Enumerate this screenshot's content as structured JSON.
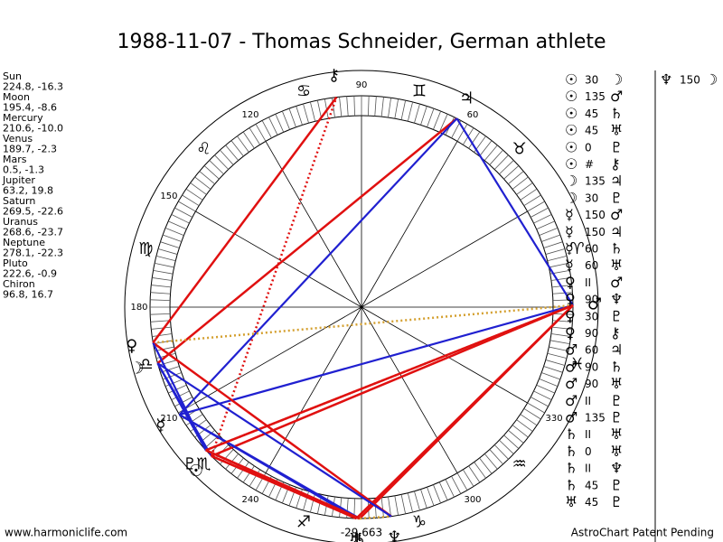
{
  "title": "1988-11-07 - Thomas Schneider, German athlete",
  "planets": [
    {
      "name": "Sun",
      "glyph": "☉",
      "position": "224.8, -16.3"
    },
    {
      "name": "Moon",
      "glyph": "☽",
      "position": "195.4, -8.6"
    },
    {
      "name": "Mercury",
      "glyph": "☿",
      "position": "210.6, -10.0"
    },
    {
      "name": "Venus",
      "glyph": "♀",
      "position": "189.7, -2.3"
    },
    {
      "name": "Mars",
      "glyph": "♂",
      "position": "0.5, -1.3"
    },
    {
      "name": "Jupiter",
      "glyph": "♃",
      "position": "63.2, 19.8"
    },
    {
      "name": "Saturn",
      "glyph": "♄",
      "position": "269.5, -22.6"
    },
    {
      "name": "Uranus",
      "glyph": "♅",
      "position": "268.6, -23.7"
    },
    {
      "name": "Neptune",
      "glyph": "♆",
      "position": "278.1, -22.3"
    },
    {
      "name": "Pluto",
      "glyph": "♇",
      "position": "222.6, -0.9"
    },
    {
      "name": "Chiron",
      "glyph": "⚷",
      "position": "96.8, 16.7"
    }
  ],
  "wheel": {
    "signs": [
      "♈",
      "♉",
      "♊",
      "♋",
      "♌",
      "♍",
      "♎",
      "♏",
      "♐",
      "♑",
      "♒",
      "♓"
    ],
    "degree_labels": [
      60,
      90,
      120,
      150,
      180,
      210,
      240,
      300,
      330
    ],
    "bottom_label": "-29,663"
  },
  "aspects": [
    [
      "☉",
      30,
      "☽"
    ],
    [
      "☉",
      135,
      "♂"
    ],
    [
      "☉",
      45,
      "♄"
    ],
    [
      "☉",
      45,
      "♅"
    ],
    [
      "☉",
      0,
      "♇"
    ],
    [
      "☉",
      "#",
      "⚷"
    ],
    [
      "☽",
      135,
      "♃"
    ],
    [
      "☽",
      30,
      "♇"
    ],
    [
      "☿",
      150,
      "♂"
    ],
    [
      "☿",
      150,
      "♃"
    ],
    [
      "☿",
      60,
      "♄"
    ],
    [
      "☿",
      60,
      "♅"
    ],
    [
      "♀",
      "II",
      "♂"
    ],
    [
      "♀",
      90,
      "♆"
    ],
    [
      "♀",
      30,
      "♇"
    ],
    [
      "♀",
      90,
      "⚷"
    ],
    [
      "♂",
      60,
      "♃"
    ],
    [
      "♂",
      90,
      "♄"
    ],
    [
      "♂",
      90,
      "♅"
    ],
    [
      "♂",
      "II",
      "♇"
    ],
    [
      "♂",
      135,
      "♇"
    ],
    [
      "♄",
      "II",
      "♅"
    ],
    [
      "♄",
      0,
      "♅"
    ],
    [
      "♄",
      "II",
      "♆"
    ],
    [
      "♄",
      45,
      "♇"
    ],
    [
      "♅",
      45,
      "♇"
    ]
  ],
  "aspects_extra": [
    [
      "♆",
      150,
      "☽"
    ]
  ],
  "footer": {
    "left": "www.harmoniclife.com",
    "right": "AstroChart Patent Pending"
  }
}
